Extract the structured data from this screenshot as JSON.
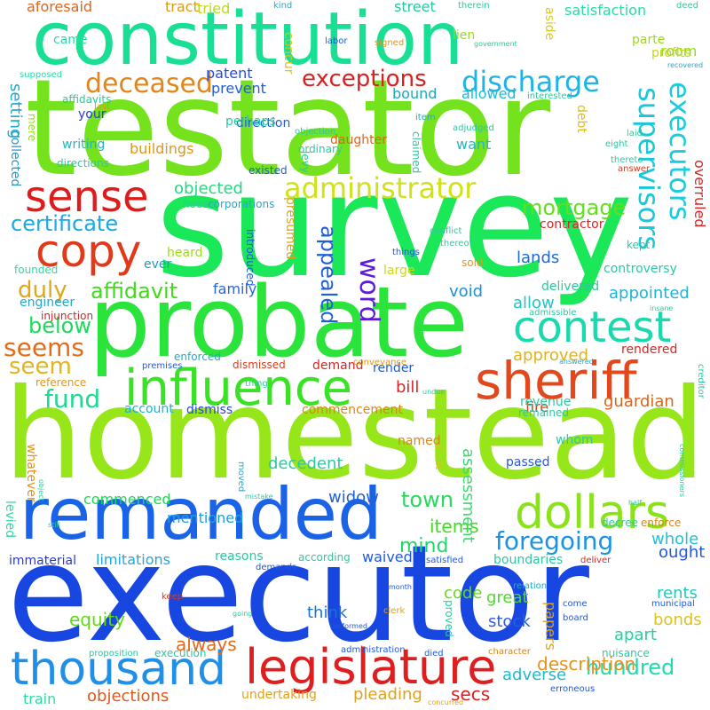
{
  "words": [
    {
      "text": "executor",
      "color": "#1846e0"
    },
    {
      "text": "homestead",
      "color": "#96e61a"
    },
    {
      "text": "survey",
      "color": "#1ae858"
    },
    {
      "text": "testator",
      "color": "#74e21c"
    },
    {
      "text": "probate",
      "color": "#2ae33b"
    },
    {
      "text": "constitution",
      "color": "#18df93"
    },
    {
      "text": "remanded",
      "color": "#1b63e6"
    },
    {
      "text": "influence",
      "color": "#3ae225"
    },
    {
      "text": "sheriff",
      "color": "#e2481c"
    },
    {
      "text": "legislature",
      "color": "#dd1f1f"
    },
    {
      "text": "thousand",
      "color": "#1f8fe8"
    },
    {
      "text": "dollars",
      "color": "#8ae21a"
    },
    {
      "text": "contest",
      "color": "#1ad9ae"
    },
    {
      "text": "copy",
      "color": "#e03a19"
    },
    {
      "text": "sense",
      "color": "#dd1c1c"
    },
    {
      "text": "administrator",
      "color": "#cfe21a"
    },
    {
      "text": "deceased",
      "color": "#e0861a"
    },
    {
      "text": "exceptions",
      "color": "#d92121"
    },
    {
      "text": "discharge",
      "color": "#1eb5e6"
    },
    {
      "text": "executors",
      "color": "#19cce0"
    },
    {
      "text": "supervisors",
      "color": "#19c7d8"
    },
    {
      "text": "foregoing",
      "color": "#1a92e6"
    },
    {
      "text": "mortgage",
      "color": "#62df1d"
    },
    {
      "text": "certificate",
      "color": "#1aa8e6"
    },
    {
      "text": "affidavit",
      "color": "#43d91c"
    },
    {
      "text": "duly",
      "color": "#dfa81a"
    },
    {
      "text": "below",
      "color": "#1ed95c"
    },
    {
      "text": "seems",
      "color": "#e26c1a"
    },
    {
      "text": "seem",
      "color": "#e2b51a"
    },
    {
      "text": "fund",
      "color": "#1ed98f"
    },
    {
      "text": "word",
      "color": "#5c1ad9"
    },
    {
      "text": "appealed",
      "color": "#1d5fd9"
    },
    {
      "text": "objected",
      "color": "#25d980"
    },
    {
      "text": "hundred",
      "color": "#1fd9b0"
    },
    {
      "text": "description",
      "color": "#e6911a"
    },
    {
      "text": "town",
      "color": "#29d95e"
    },
    {
      "text": "mind",
      "color": "#1fd66b"
    },
    {
      "text": "items",
      "color": "#40d924"
    },
    {
      "text": "appointed",
      "color": "#1cb5d9"
    },
    {
      "text": "approved",
      "color": "#e0b31a"
    },
    {
      "text": "guardian",
      "color": "#d9661a"
    },
    {
      "text": "whole",
      "color": "#21c2d9"
    },
    {
      "text": "widow",
      "color": "#1d60d9"
    },
    {
      "text": "decedent",
      "color": "#2ec7a1"
    },
    {
      "text": "think",
      "color": "#1a73d9"
    },
    {
      "text": "great",
      "color": "#4ed92a"
    },
    {
      "text": "stock",
      "color": "#2a5fd9"
    },
    {
      "text": "secs",
      "color": "#dd1f1f"
    },
    {
      "text": "adverse",
      "color": "#1fb9c7"
    },
    {
      "text": "pleading",
      "color": "#dfa21a"
    },
    {
      "text": "objections",
      "color": "#e0581a"
    },
    {
      "text": "train",
      "color": "#2ed9a5"
    },
    {
      "text": "commenced",
      "color": "#1ad955"
    },
    {
      "text": "mentioned",
      "color": "#1fa0d9"
    },
    {
      "text": "limitations",
      "color": "#1fa9d9"
    },
    {
      "text": "equity",
      "color": "#5fd91a"
    },
    {
      "text": "always",
      "color": "#e2681a"
    },
    {
      "text": "assessment",
      "color": "#3ed96e"
    },
    {
      "text": "papers",
      "color": "#dfa41a"
    },
    {
      "text": "bonds",
      "color": "#dfc21a"
    },
    {
      "text": "rents",
      "color": "#21c9c0"
    },
    {
      "text": "ought",
      "color": "#2159d9"
    },
    {
      "text": "apart",
      "color": "#24cfa0"
    },
    {
      "text": "code",
      "color": "#64d91f"
    },
    {
      "text": "lands",
      "color": "#1a6cd9"
    },
    {
      "text": "void",
      "color": "#1d8fd9"
    },
    {
      "text": "family",
      "color": "#2766d9"
    },
    {
      "text": "allow",
      "color": "#1fc7c5"
    },
    {
      "text": "fire",
      "color": "#d93d1a"
    },
    {
      "text": "bill",
      "color": "#d92525"
    },
    {
      "text": "account",
      "color": "#1fb2c9"
    },
    {
      "text": "dismiss",
      "color": "#2a46d9"
    },
    {
      "text": "room",
      "color": "#8fd91a"
    },
    {
      "text": "profits",
      "color": "#c2d91a"
    },
    {
      "text": "parte",
      "color": "#9ed91a"
    },
    {
      "text": "satisfaction",
      "color": "#2ed9a8"
    },
    {
      "text": "street",
      "color": "#27c7a4"
    },
    {
      "text": "tract",
      "color": "#d99b1a"
    },
    {
      "text": "tried",
      "color": "#bcd91a"
    },
    {
      "text": "aforesaid",
      "color": "#e0631a"
    },
    {
      "text": "setting",
      "color": "#1fa8c9"
    },
    {
      "text": "collected",
      "color": "#2499c7"
    },
    {
      "text": "buildings",
      "color": "#e0961a"
    },
    {
      "text": "direction",
      "color": "#255ad9"
    },
    {
      "text": "prevent",
      "color": "#265ad9"
    },
    {
      "text": "patent",
      "color": "#2a4ad9"
    },
    {
      "text": "came",
      "color": "#2ed9a2"
    },
    {
      "text": "lien",
      "color": "#9bd91a"
    },
    {
      "text": "concur",
      "color": "#d9c21a"
    },
    {
      "text": "aside",
      "color": "#d9cd1a"
    },
    {
      "text": "allowed",
      "color": "#1fb9d9"
    },
    {
      "text": "bound",
      "color": "#1ea7b9"
    },
    {
      "text": "debt",
      "color": "#d9c01a"
    },
    {
      "text": "want",
      "color": "#24b5c9"
    },
    {
      "text": "perhaps",
      "color": "#2cc79c"
    },
    {
      "text": "daughter",
      "color": "#e0641a"
    },
    {
      "text": "your",
      "color": "#2c3ad9"
    },
    {
      "text": "writing",
      "color": "#21b5b9"
    },
    {
      "text": "contractor",
      "color": "#d92525"
    },
    {
      "text": "overruled",
      "color": "#d92525"
    },
    {
      "text": "house",
      "color": "#2fc7a0"
    },
    {
      "text": "heard",
      "color": "#9bd91a"
    },
    {
      "text": "ever",
      "color": "#1f9bc9"
    },
    {
      "text": "presumed",
      "color": "#dfa21a"
    },
    {
      "text": "founded",
      "color": "#2ed9a5"
    },
    {
      "text": "large",
      "color": "#cbd91a"
    },
    {
      "text": "controversy",
      "color": "#27c7a4"
    },
    {
      "text": "sold",
      "color": "#e0961a"
    },
    {
      "text": "kept",
      "color": "#2fc7a0"
    },
    {
      "text": "engineer",
      "color": "#26a8c9"
    },
    {
      "text": "delivered",
      "color": "#2ec79c"
    },
    {
      "text": "render",
      "color": "#2059d9"
    },
    {
      "text": "rendered",
      "color": "#d92525"
    },
    {
      "text": "demand",
      "color": "#d92525"
    },
    {
      "text": "dismissed",
      "color": "#d93d1a"
    },
    {
      "text": "commencement",
      "color": "#d9851a"
    },
    {
      "text": "revenue",
      "color": "#2fc79c"
    },
    {
      "text": "remained",
      "color": "#2ec7a2"
    },
    {
      "text": "named",
      "color": "#d9851a"
    },
    {
      "text": "whom",
      "color": "#2fc7a0"
    },
    {
      "text": "passed",
      "color": "#265ad9"
    },
    {
      "text": "whatever",
      "color": "#e0961a"
    },
    {
      "text": "levied",
      "color": "#2ed9a5"
    },
    {
      "text": "immaterial",
      "color": "#253ad9"
    },
    {
      "text": "reasons",
      "color": "#2fc79c"
    },
    {
      "text": "waived",
      "color": "#2059d9"
    },
    {
      "text": "boundaries",
      "color": "#2fc7a0"
    },
    {
      "text": "decree",
      "color": "#2fc79c"
    },
    {
      "text": "enforce",
      "color": "#d9851a"
    },
    {
      "text": "injunction",
      "color": "#d92525"
    },
    {
      "text": "enforced",
      "color": "#26a8c9"
    },
    {
      "text": "reference",
      "color": "#e0961a"
    },
    {
      "text": "conveyance",
      "color": "#e0961a"
    },
    {
      "text": "admissible",
      "color": "#2fc7a0"
    },
    {
      "text": "interested",
      "color": "#2fc79c"
    },
    {
      "text": "affidavits",
      "color": "#2fc7a0"
    },
    {
      "text": "supposed",
      "color": "#2ed9a5"
    },
    {
      "text": "last",
      "color": "#e0961a"
    },
    {
      "text": "mere",
      "color": "#9bd91a"
    },
    {
      "text": "item",
      "color": "#26a8c9"
    },
    {
      "text": "objection",
      "color": "#2fc79c"
    },
    {
      "text": "ordinary",
      "color": "#2fc7a0"
    },
    {
      "text": "existed",
      "color": "#2059d9"
    },
    {
      "text": "corporations",
      "color": "#26a8c9"
    },
    {
      "text": "directions",
      "color": "#2fc7a0"
    },
    {
      "text": "levy",
      "color": "#2ec79c"
    },
    {
      "text": "claimed",
      "color": "#2fc7a0"
    },
    {
      "text": "adjudged",
      "color": "#2fc7a0"
    },
    {
      "text": "introduced",
      "color": "#2059d9"
    },
    {
      "text": "conflict",
      "color": "#2fc7a0"
    },
    {
      "text": "thereof",
      "color": "#2fc79c"
    },
    {
      "text": "things",
      "color": "#2059d9"
    },
    {
      "text": "eight",
      "color": "#2fc7a0"
    },
    {
      "text": "laid",
      "color": "#2fc79c"
    },
    {
      "text": "thereto",
      "color": "#2fc7a0"
    },
    {
      "text": "answer",
      "color": "#d93d1a"
    },
    {
      "text": "kind",
      "color": "#26a8c9"
    },
    {
      "text": "labor",
      "color": "#2059d9"
    },
    {
      "text": "signed",
      "color": "#e0961a"
    },
    {
      "text": "therein",
      "color": "#2fc7a0"
    },
    {
      "text": "government",
      "color": "#2fc79c"
    },
    {
      "text": "deed",
      "color": "#2fc7a0"
    },
    {
      "text": "recovered",
      "color": "#26a8c9"
    },
    {
      "text": "premises",
      "color": "#2059d9"
    },
    {
      "text": "answered",
      "color": "#26a8c9"
    },
    {
      "text": "thing",
      "color": "#2fc7a0"
    },
    {
      "text": "undue",
      "color": "#2fc7a0"
    },
    {
      "text": "doubt",
      "color": "#d9c21a"
    },
    {
      "text": "creditor",
      "color": "#2fc7a0"
    },
    {
      "text": "insane",
      "color": "#2fc7a0"
    },
    {
      "text": "object",
      "color": "#2fc7a0"
    },
    {
      "text": "moved",
      "color": "#26a8c9"
    },
    {
      "text": "still",
      "color": "#2fc79c"
    },
    {
      "text": "mistake",
      "color": "#2fc7a0"
    },
    {
      "text": "demands",
      "color": "#2059d9"
    },
    {
      "text": "according",
      "color": "#2fc7a0"
    },
    {
      "text": "satisfied",
      "color": "#2059d9"
    },
    {
      "text": "half",
      "color": "#2fc7a0"
    },
    {
      "text": "commissioners",
      "color": "#2fc7a0"
    },
    {
      "text": "deliver",
      "color": "#d92525"
    },
    {
      "text": "relation",
      "color": "#26a8c9"
    },
    {
      "text": "municipal",
      "color": "#2059d9"
    },
    {
      "text": "come",
      "color": "#2059d9"
    },
    {
      "text": "board",
      "color": "#2059d9"
    },
    {
      "text": "keep",
      "color": "#d93d1a"
    },
    {
      "text": "going",
      "color": "#2fc7a0"
    },
    {
      "text": "month",
      "color": "#2059d9"
    },
    {
      "text": "clerk",
      "color": "#dfa21a"
    },
    {
      "text": "proved",
      "color": "#2fc7a0"
    },
    {
      "text": "proposition",
      "color": "#2fc7a0"
    },
    {
      "text": "performed",
      "color": "#2059d9"
    },
    {
      "text": "administration",
      "color": "#2059d9"
    },
    {
      "text": "died",
      "color": "#2059d9"
    },
    {
      "text": "execution",
      "color": "#2fc7a0"
    },
    {
      "text": "character",
      "color": "#d9851a"
    },
    {
      "text": "nuisance",
      "color": "#2fc7a0"
    },
    {
      "text": "undertaking",
      "color": "#dfa21a"
    },
    {
      "text": "erroneous",
      "color": "#2059d9"
    },
    {
      "text": "concurred",
      "color": "#dfa21a"
    }
  ]
}
